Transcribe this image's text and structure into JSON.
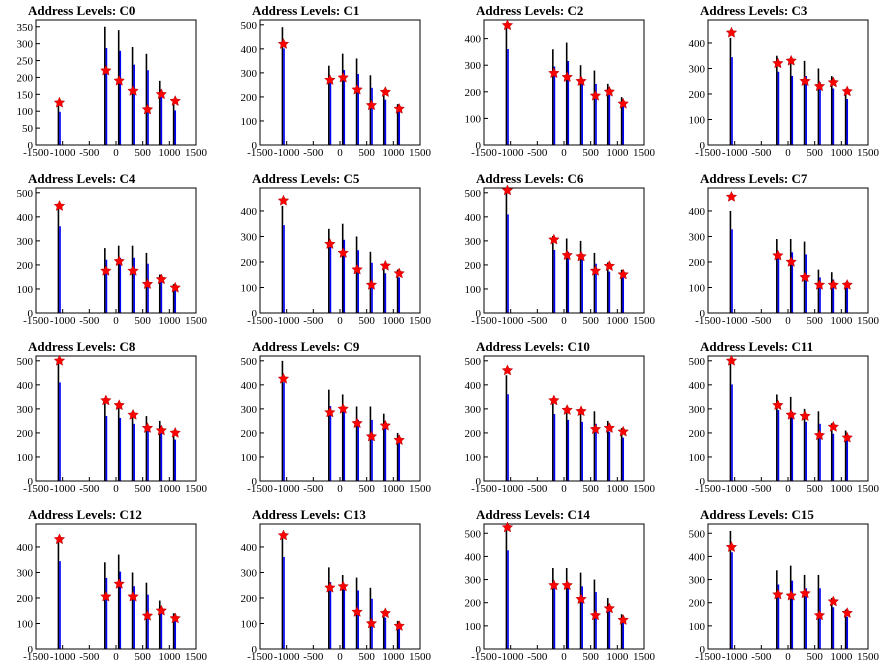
{
  "colors": {
    "histogram": "#0000ff",
    "histogram_dark": "#000000",
    "peak_marker": "#ff0000",
    "frame": "#000000",
    "background": "#ffffff"
  },
  "chart_data": [
    {
      "type": "bar",
      "title": "Address Levels: C0",
      "xlim": [
        -1500,
        1500
      ],
      "ylim": [
        0,
        370
      ],
      "yticks": [
        0,
        50,
        100,
        150,
        200,
        250,
        300,
        350
      ],
      "xticks": [
        -1500,
        -1000,
        -500,
        0,
        500,
        1000,
        1500
      ],
      "xtick_labels": [
        "-1500",
        "-1000",
        "-500",
        "0",
        "500",
        "1000",
        "1500"
      ],
      "series": [
        {
          "x": [
            -1070,
            -200,
            60,
            320,
            580,
            830,
            1090
          ],
          "values": [
            120,
            350,
            340,
            290,
            270,
            190,
            125
          ]
        }
      ],
      "peaks": {
        "x": [
          -1060,
          -190,
          60,
          320,
          590,
          850,
          1110
        ],
        "y": [
          125,
          220,
          190,
          160,
          105,
          150,
          130
        ]
      }
    },
    {
      "type": "bar",
      "title": "Address Levels: C1",
      "xlim": [
        -1500,
        1500
      ],
      "ylim": [
        0,
        520
      ],
      "yticks": [
        0,
        100,
        200,
        300,
        400,
        500
      ],
      "xticks": [
        -1500,
        -1000,
        -500,
        0,
        500,
        1000,
        1500
      ],
      "xtick_labels": [
        "-1500",
        "-1000",
        "-500",
        "0",
        "500",
        "1000",
        "1500"
      ],
      "series": [
        {
          "x": [
            -1070,
            -200,
            60,
            320,
            580,
            830,
            1090
          ],
          "values": [
            490,
            330,
            380,
            360,
            290,
            230,
            170
          ]
        }
      ],
      "peaks": {
        "x": [
          -1060,
          -190,
          60,
          320,
          590,
          850,
          1110
        ],
        "y": [
          420,
          270,
          280,
          230,
          165,
          220,
          150
        ]
      }
    },
    {
      "type": "bar",
      "title": "Address Levels: C2",
      "xlim": [
        -1500,
        1500
      ],
      "ylim": [
        0,
        470
      ],
      "yticks": [
        0,
        100,
        200,
        300,
        400
      ],
      "xticks": [
        -1500,
        -1000,
        -500,
        0,
        500,
        1000,
        1500
      ],
      "xtick_labels": [
        "-1500",
        "-1000",
        "-500",
        "0",
        "500",
        "1000",
        "1500"
      ],
      "series": [
        {
          "x": [
            -1070,
            -200,
            60,
            320,
            580,
            830,
            1090
          ],
          "values": [
            440,
            360,
            385,
            300,
            280,
            230,
            180
          ]
        }
      ],
      "peaks": {
        "x": [
          -1060,
          -190,
          60,
          320,
          590,
          850,
          1110
        ],
        "y": [
          450,
          270,
          255,
          240,
          185,
          200,
          155
        ]
      }
    },
    {
      "type": "bar",
      "title": "Address Levels: C3",
      "xlim": [
        -1500,
        1500
      ],
      "ylim": [
        0,
        490
      ],
      "yticks": [
        0,
        100,
        200,
        300,
        400
      ],
      "xticks": [
        -1500,
        -1000,
        -500,
        0,
        500,
        1000,
        1500
      ],
      "xtick_labels": [
        "-1500",
        "-1000",
        "-500",
        "0",
        "500",
        "1000",
        "1500"
      ],
      "series": [
        {
          "x": [
            -1070,
            -200,
            60,
            320,
            580,
            830,
            1090
          ],
          "values": [
            420,
            350,
            330,
            330,
            300,
            270,
            220
          ]
        }
      ],
      "peaks": {
        "x": [
          -1060,
          -190,
          60,
          320,
          590,
          850,
          1110
        ],
        "y": [
          440,
          320,
          330,
          250,
          230,
          245,
          210
        ]
      }
    },
    {
      "type": "bar",
      "title": "Address Levels: C4",
      "xlim": [
        -1500,
        1500
      ],
      "ylim": [
        0,
        520
      ],
      "yticks": [
        0,
        100,
        200,
        300,
        400,
        500
      ],
      "xticks": [
        -1500,
        -1000,
        -500,
        0,
        500,
        1000,
        1500
      ],
      "xtick_labels": [
        "-1500",
        "-1000",
        "-500",
        "0",
        "500",
        "1000",
        "1500"
      ],
      "series": [
        {
          "x": [
            -1070,
            -200,
            60,
            320,
            580,
            830,
            1090
          ],
          "values": [
            440,
            270,
            280,
            280,
            250,
            160,
            120
          ]
        }
      ],
      "peaks": {
        "x": [
          -1060,
          -190,
          60,
          320,
          590,
          850,
          1110
        ],
        "y": [
          445,
          175,
          215,
          175,
          120,
          140,
          105
        ]
      }
    },
    {
      "type": "bar",
      "title": "Address Levels: C5",
      "xlim": [
        -1500,
        1500
      ],
      "ylim": [
        0,
        490
      ],
      "yticks": [
        0,
        100,
        200,
        300,
        400
      ],
      "xticks": [
        -1500,
        -1000,
        -500,
        0,
        500,
        1000,
        1500
      ],
      "xtick_labels": [
        "-1500",
        "-1000",
        "-500",
        "0",
        "500",
        "1000",
        "1500"
      ],
      "series": [
        {
          "x": [
            -1070,
            -200,
            60,
            320,
            580,
            830,
            1090
          ],
          "values": [
            420,
            330,
            350,
            300,
            240,
            190,
            170
          ]
        }
      ],
      "peaks": {
        "x": [
          -1060,
          -190,
          60,
          320,
          590,
          850,
          1110
        ],
        "y": [
          440,
          270,
          235,
          170,
          110,
          185,
          155
        ]
      }
    },
    {
      "type": "bar",
      "title": "Address Levels: C6",
      "xlim": [
        -1500,
        1500
      ],
      "ylim": [
        0,
        520
      ],
      "yticks": [
        0,
        100,
        200,
        300,
        400,
        500
      ],
      "xticks": [
        -1500,
        -1000,
        -500,
        0,
        500,
        1000,
        1500
      ],
      "xtick_labels": [
        "-1500",
        "-1000",
        "-500",
        "0",
        "500",
        "1000",
        "1500"
      ],
      "series": [
        {
          "x": [
            -1070,
            -200,
            60,
            320,
            580,
            830,
            1090
          ],
          "values": [
            500,
            320,
            310,
            300,
            250,
            210,
            180
          ]
        }
      ],
      "peaks": {
        "x": [
          -1060,
          -190,
          60,
          320,
          590,
          850,
          1110
        ],
        "y": [
          510,
          305,
          240,
          235,
          175,
          195,
          160
        ]
      }
    },
    {
      "type": "bar",
      "title": "Address Levels: C7",
      "xlim": [
        -1500,
        1500
      ],
      "ylim": [
        0,
        490
      ],
      "yticks": [
        0,
        100,
        200,
        300,
        400
      ],
      "xticks": [
        -1500,
        -1000,
        -500,
        0,
        500,
        1000,
        1500
      ],
      "xtick_labels": [
        "-1500",
        "-1000",
        "-500",
        "0",
        "500",
        "1000",
        "1500"
      ],
      "series": [
        {
          "x": [
            -1070,
            -200,
            60,
            320,
            580,
            830,
            1090
          ],
          "values": [
            400,
            290,
            290,
            280,
            170,
            160,
            120
          ]
        }
      ],
      "peaks": {
        "x": [
          -1060,
          -190,
          60,
          320,
          590,
          850,
          1110
        ],
        "y": [
          455,
          225,
          200,
          140,
          110,
          110,
          110
        ]
      }
    },
    {
      "type": "bar",
      "title": "Address Levels: C8",
      "xlim": [
        -1500,
        1500
      ],
      "ylim": [
        0,
        520
      ],
      "yticks": [
        0,
        100,
        200,
        300,
        400,
        500
      ],
      "xticks": [
        -1500,
        -1000,
        -500,
        0,
        500,
        1000,
        1500
      ],
      "xtick_labels": [
        "-1500",
        "-1000",
        "-500",
        "0",
        "500",
        "1000",
        "1500"
      ],
      "series": [
        {
          "x": [
            -1070,
            -200,
            60,
            320,
            580,
            830,
            1090
          ],
          "values": [
            500,
            330,
            320,
            290,
            270,
            250,
            210
          ]
        }
      ],
      "peaks": {
        "x": [
          -1060,
          -190,
          60,
          320,
          590,
          850,
          1110
        ],
        "y": [
          500,
          335,
          315,
          275,
          220,
          210,
          200
        ]
      }
    },
    {
      "type": "bar",
      "title": "Address Levels: C9",
      "xlim": [
        -1500,
        1500
      ],
      "ylim": [
        0,
        520
      ],
      "yticks": [
        0,
        100,
        200,
        300,
        400,
        500
      ],
      "xticks": [
        -1500,
        -1000,
        -500,
        0,
        500,
        1000,
        1500
      ],
      "xtick_labels": [
        "-1500",
        "-1000",
        "-500",
        "0",
        "500",
        "1000",
        "1500"
      ],
      "series": [
        {
          "x": [
            -1070,
            -200,
            60,
            320,
            580,
            830,
            1090
          ],
          "values": [
            500,
            380,
            360,
            310,
            310,
            280,
            200
          ]
        }
      ],
      "peaks": {
        "x": [
          -1060,
          -190,
          60,
          320,
          590,
          850,
          1110
        ],
        "y": [
          425,
          285,
          300,
          240,
          185,
          230,
          170
        ]
      }
    },
    {
      "type": "bar",
      "title": "Address Levels: C10",
      "xlim": [
        -1500,
        1500
      ],
      "ylim": [
        0,
        520
      ],
      "yticks": [
        0,
        100,
        200,
        300,
        400,
        500
      ],
      "xticks": [
        -1500,
        -1000,
        -500,
        0,
        500,
        1000,
        1500
      ],
      "xtick_labels": [
        "-1500",
        "-1000",
        "-500",
        "0",
        "500",
        "1000",
        "1500"
      ],
      "series": [
        {
          "x": [
            -1070,
            -200,
            60,
            320,
            580,
            830,
            1090
          ],
          "values": [
            440,
            340,
            310,
            300,
            290,
            250,
            220
          ]
        }
      ],
      "peaks": {
        "x": [
          -1060,
          -190,
          60,
          320,
          590,
          850,
          1110
        ],
        "y": [
          460,
          335,
          295,
          290,
          215,
          220,
          205
        ]
      }
    },
    {
      "type": "bar",
      "title": "Address Levels: C11",
      "xlim": [
        -1500,
        1500
      ],
      "ylim": [
        0,
        520
      ],
      "yticks": [
        0,
        100,
        200,
        300,
        400,
        500
      ],
      "xticks": [
        -1500,
        -1000,
        -500,
        0,
        500,
        1000,
        1500
      ],
      "xtick_labels": [
        "-1500",
        "-1000",
        "-500",
        "0",
        "500",
        "1000",
        "1500"
      ],
      "series": [
        {
          "x": [
            -1070,
            -200,
            60,
            320,
            580,
            830,
            1090
          ],
          "values": [
            490,
            360,
            350,
            300,
            290,
            240,
            210
          ]
        }
      ],
      "peaks": {
        "x": [
          -1060,
          -190,
          60,
          320,
          590,
          850,
          1110
        ],
        "y": [
          500,
          315,
          275,
          270,
          190,
          225,
          180
        ]
      }
    },
    {
      "type": "bar",
      "title": "Address Levels: C12",
      "xlim": [
        -1500,
        1500
      ],
      "ylim": [
        0,
        490
      ],
      "yticks": [
        0,
        100,
        200,
        300,
        400
      ],
      "xticks": [
        -1500,
        -1000,
        -500,
        0,
        500,
        1000,
        1500
      ],
      "xtick_labels": [
        "-1500",
        "-1000",
        "-500",
        "0",
        "500",
        "1000",
        "1500"
      ],
      "series": [
        {
          "x": [
            -1070,
            -200,
            60,
            320,
            580,
            830,
            1090
          ],
          "values": [
            420,
            340,
            370,
            300,
            260,
            190,
            140
          ]
        }
      ],
      "peaks": {
        "x": [
          -1060,
          -190,
          60,
          320,
          590,
          850,
          1110
        ],
        "y": [
          430,
          205,
          255,
          205,
          130,
          150,
          120
        ]
      }
    },
    {
      "type": "bar",
      "title": "Address Levels: C13",
      "xlim": [
        -1500,
        1500
      ],
      "ylim": [
        0,
        490
      ],
      "yticks": [
        0,
        100,
        200,
        300,
        400
      ],
      "xticks": [
        -1500,
        -1000,
        -500,
        0,
        500,
        1000,
        1500
      ],
      "xtick_labels": [
        "-1500",
        "-1000",
        "-500",
        "0",
        "500",
        "1000",
        "1500"
      ],
      "series": [
        {
          "x": [
            -1070,
            -200,
            60,
            320,
            580,
            830,
            1090
          ],
          "values": [
            440,
            320,
            290,
            280,
            240,
            150,
            110
          ]
        }
      ],
      "peaks": {
        "x": [
          -1060,
          -190,
          60,
          320,
          590,
          850,
          1110
        ],
        "y": [
          445,
          240,
          245,
          145,
          100,
          140,
          90
        ]
      }
    },
    {
      "type": "bar",
      "title": "Address Levels: C14",
      "xlim": [
        -1500,
        1500
      ],
      "ylim": [
        0,
        540
      ],
      "yticks": [
        0,
        100,
        200,
        300,
        400,
        500
      ],
      "xticks": [
        -1500,
        -1000,
        -500,
        0,
        500,
        1000,
        1500
      ],
      "xtick_labels": [
        "-1500",
        "-1000",
        "-500",
        "0",
        "500",
        "1000",
        "1500"
      ],
      "series": [
        {
          "x": [
            -1070,
            -200,
            60,
            320,
            580,
            830,
            1090
          ],
          "values": [
            520,
            350,
            350,
            330,
            300,
            220,
            150
          ]
        }
      ],
      "peaks": {
        "x": [
          -1060,
          -190,
          60,
          320,
          590,
          850,
          1110
        ],
        "y": [
          525,
          275,
          275,
          215,
          145,
          175,
          125
        ]
      }
    },
    {
      "type": "bar",
      "title": "Address Levels: C15",
      "xlim": [
        -1500,
        1500
      ],
      "ylim": [
        0,
        540
      ],
      "yticks": [
        0,
        100,
        200,
        300,
        400,
        500
      ],
      "xticks": [
        -1500,
        -1000,
        -500,
        0,
        500,
        1000,
        1500
      ],
      "xtick_labels": [
        "-1500",
        "-1000",
        "-500",
        "0",
        "500",
        "1000",
        "1500"
      ],
      "series": [
        {
          "x": [
            -1070,
            -200,
            60,
            320,
            580,
            830,
            1090
          ],
          "values": [
            510,
            340,
            360,
            320,
            320,
            220,
            170
          ]
        }
      ],
      "peaks": {
        "x": [
          -1060,
          -190,
          60,
          320,
          590,
          850,
          1110
        ],
        "y": [
          440,
          235,
          230,
          240,
          145,
          205,
          155
        ]
      }
    }
  ]
}
